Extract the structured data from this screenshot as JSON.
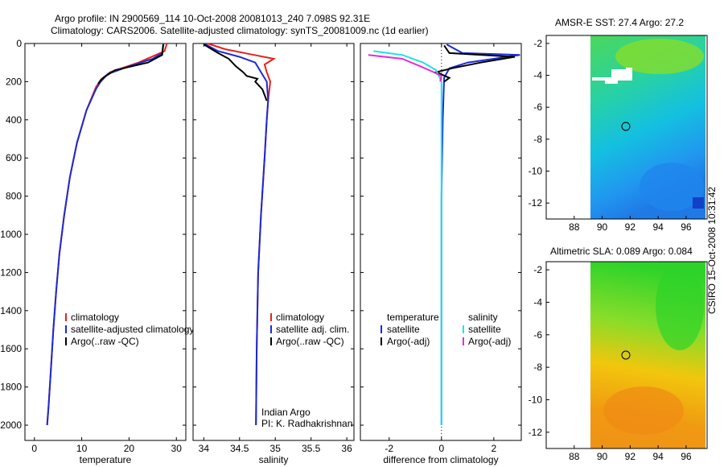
{
  "header": {
    "line1": "Argo profile: IN 2900569_114 10-Oct-2008 20081013_240 7.098S 92.31E",
    "line2": "Climatology: CARS2006. Satellite-adjusted climatology: synTS_20081009.nc (1d earlier)"
  },
  "colors": {
    "climatology": "#e8211b",
    "satellite": "#1a2bd6",
    "argo": "#000000",
    "sal_sat": "#22e3e8",
    "sal_argo": "#e82ad6"
  },
  "chart_data": [
    {
      "id": "temperature",
      "type": "line",
      "xlabel": "temperature",
      "ylabel": "",
      "xlim": [
        -2,
        32
      ],
      "ylim": [
        2080,
        0
      ],
      "y_reversed": true,
      "xticks": [
        0,
        10,
        20,
        30
      ],
      "yticks": [
        0,
        200,
        400,
        600,
        800,
        1000,
        1200,
        1400,
        1600,
        1800,
        2000
      ],
      "legend": [
        "climatology",
        "satellite-adjusted climatology",
        "Argo(..raw -QC)"
      ],
      "series": [
        {
          "name": "climatology",
          "color": "#e8211b",
          "points": [
            [
              28,
              0
            ],
            [
              27.5,
              40
            ],
            [
              22,
              100
            ],
            [
              16,
              150
            ],
            [
              14,
              190
            ],
            [
              13,
              230
            ],
            [
              11,
              350
            ],
            [
              9,
              520
            ],
            [
              7.5,
              700
            ],
            [
              6.3,
              900
            ],
            [
              5.3,
              1100
            ],
            [
              4.6,
              1300
            ],
            [
              4.0,
              1500
            ],
            [
              3.5,
              1700
            ],
            [
              3.0,
              1900
            ],
            [
              2.7,
              2000
            ]
          ]
        },
        {
          "name": "satellite-adjusted climatology",
          "color": "#1a2bd6",
          "points": [
            [
              27.3,
              0
            ],
            [
              27.0,
              50
            ],
            [
              25,
              80
            ],
            [
              20,
              120
            ],
            [
              15.5,
              160
            ],
            [
              14,
              200
            ],
            [
              13,
              240
            ],
            [
              11,
              350
            ],
            [
              9,
              520
            ],
            [
              7.5,
              700
            ],
            [
              6.3,
              900
            ],
            [
              5.3,
              1100
            ],
            [
              4.6,
              1300
            ],
            [
              4.0,
              1500
            ],
            [
              3.5,
              1700
            ],
            [
              3.0,
              1900
            ],
            [
              2.7,
              2000
            ]
          ]
        },
        {
          "name": "Argo(..raw -QC)",
          "color": "#000000",
          "points": [
            [
              27.2,
              5
            ],
            [
              27.0,
              60
            ],
            [
              24,
              100
            ],
            [
              17,
              140
            ],
            [
              14.5,
              180
            ],
            [
              13.5,
              210
            ]
          ]
        }
      ]
    },
    {
      "id": "salinity",
      "type": "line",
      "xlabel": "salinity",
      "ylabel": "",
      "xlim": [
        33.85,
        36.1
      ],
      "ylim": [
        2080,
        0
      ],
      "y_reversed": true,
      "xticks": [
        34,
        34.5,
        35,
        35.5,
        36
      ],
      "yticks": [
        0,
        200,
        400,
        600,
        800,
        1000,
        1200,
        1400,
        1600,
        1800,
        2000
      ],
      "legend": [
        "climatology",
        "satellite adj. clim.",
        "Argo(..raw -QC)"
      ],
      "annotation": [
        "Indian Argo",
        "PI: K. Radhakrishnan"
      ],
      "series": [
        {
          "name": "climatology",
          "color": "#e8211b",
          "points": [
            [
              34.05,
              0
            ],
            [
              34.3,
              30
            ],
            [
              34.7,
              60
            ],
            [
              34.98,
              80
            ],
            [
              34.85,
              110
            ],
            [
              34.88,
              150
            ],
            [
              34.93,
              200
            ],
            [
              34.9,
              300
            ],
            [
              34.88,
              400
            ],
            [
              34.85,
              600
            ],
            [
              34.8,
              900
            ],
            [
              34.76,
              1200
            ],
            [
              34.74,
              1600
            ],
            [
              34.73,
              2000
            ]
          ]
        },
        {
          "name": "satellite adj. clim.",
          "color": "#1a2bd6",
          "points": [
            [
              34.0,
              0
            ],
            [
              34.2,
              40
            ],
            [
              34.5,
              70
            ],
            [
              34.72,
              100
            ],
            [
              34.8,
              150
            ],
            [
              34.88,
              200
            ],
            [
              34.9,
              300
            ],
            [
              34.88,
              400
            ],
            [
              34.85,
              600
            ],
            [
              34.8,
              900
            ],
            [
              34.76,
              1200
            ],
            [
              34.74,
              1600
            ],
            [
              34.73,
              2000
            ]
          ]
        },
        {
          "name": "Argo(..raw -QC)",
          "color": "#000000",
          "points": [
            [
              34.0,
              5
            ],
            [
              34.2,
              50
            ],
            [
              34.35,
              80
            ],
            [
              34.45,
              120
            ],
            [
              34.55,
              150
            ],
            [
              34.6,
              170
            ],
            [
              34.75,
              185
            ],
            [
              34.72,
              200
            ],
            [
              34.82,
              240
            ],
            [
              34.88,
              300
            ]
          ]
        }
      ]
    },
    {
      "id": "difference",
      "type": "line",
      "xlabel": "difference from climatology",
      "ylabel": "",
      "xlim": [
        -3.1,
        3.05
      ],
      "ylim": [
        2080,
        0
      ],
      "y_reversed": true,
      "xticks": [
        -2,
        0,
        2
      ],
      "yticks": [
        0,
        200,
        400,
        600,
        800,
        1000,
        1200,
        1400,
        1600,
        1800,
        2000
      ],
      "legend_temperature": [
        "temperature",
        "satellite",
        "Argo(-adj)"
      ],
      "legend_salinity": [
        "salinity",
        "satellite",
        "Argo(-adj)"
      ],
      "series": [
        {
          "name": "temperature satellite",
          "color": "#1a2bd6",
          "points": [
            [
              0.2,
              5
            ],
            [
              0.8,
              50
            ],
            [
              3.0,
              60
            ],
            [
              2.5,
              70
            ],
            [
              1.0,
              100
            ],
            [
              0.3,
              130
            ],
            [
              0.1,
              180
            ],
            [
              0.05,
              400
            ],
            [
              0,
              800
            ],
            [
              0,
              2000
            ]
          ]
        },
        {
          "name": "temperature Argo(-adj)",
          "color": "#000000",
          "points": [
            [
              0.1,
              10
            ],
            [
              0.3,
              50
            ],
            [
              2.8,
              70
            ],
            [
              1.5,
              100
            ],
            [
              0.4,
              130
            ],
            [
              -0.2,
              150
            ],
            [
              0.3,
              180
            ],
            [
              0.1,
              200
            ]
          ]
        },
        {
          "name": "salinity satellite",
          "color": "#22e3e8",
          "points": [
            [
              -2.6,
              40
            ],
            [
              -1.5,
              60
            ],
            [
              -0.7,
              100
            ],
            [
              -0.2,
              140
            ],
            [
              0,
              200
            ],
            [
              0,
              300
            ],
            [
              0,
              600
            ],
            [
              0,
              1000
            ],
            [
              0,
              1500
            ],
            [
              0,
              2000
            ]
          ]
        },
        {
          "name": "salinity Argo(-adj)",
          "color": "#e82ad6",
          "points": [
            [
              -2.8,
              60
            ],
            [
              -1.5,
              80
            ],
            [
              -0.8,
              120
            ],
            [
              -0.3,
              150
            ],
            [
              0,
              170
            ],
            [
              -0.05,
              200
            ]
          ]
        }
      ]
    },
    {
      "id": "sst_map",
      "type": "heatmap",
      "title": "AMSR-E SST: 27.4 Argo: 27.2",
      "xlim": [
        86,
        97.5
      ],
      "ylim": [
        -13,
        -1.5
      ],
      "xticks": [
        88,
        90,
        92,
        94,
        96
      ],
      "yticks": [
        -2,
        -4,
        -6,
        -8,
        -10,
        -12
      ],
      "marker": [
        92.3,
        -7.1
      ]
    },
    {
      "id": "sla_map",
      "type": "heatmap",
      "title": "Altimetric SLA: 0.089 Argo: 0.084",
      "xlim": [
        86,
        97.5
      ],
      "ylim": [
        -13,
        -1.5
      ],
      "xticks": [
        88,
        90,
        92,
        94,
        96
      ],
      "yticks": [
        -2,
        -4,
        -6,
        -8,
        -10,
        -12
      ],
      "marker": [
        92.3,
        -7.1
      ]
    }
  ],
  "side_label": "CSIRO 15-Oct-2008 10:31:42"
}
